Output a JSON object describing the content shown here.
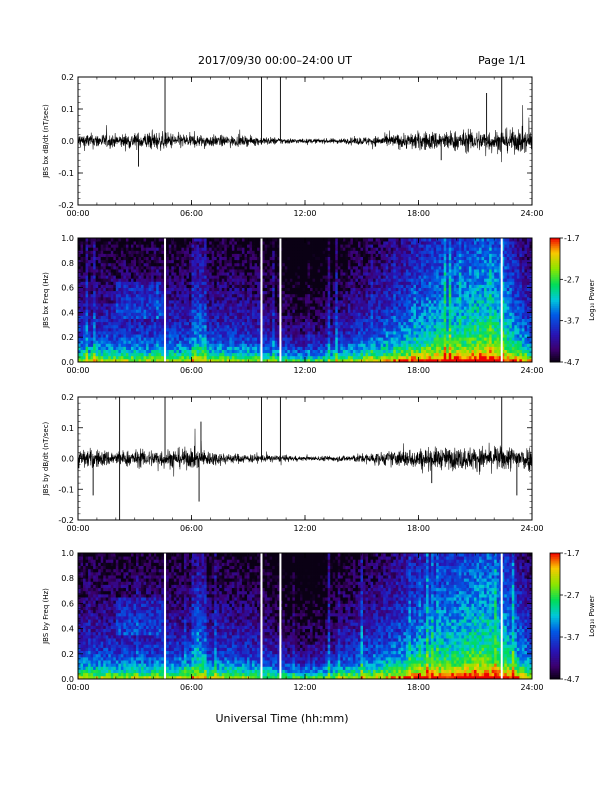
{
  "header": {
    "title": "2017/09/30  00:00–24:00 UT",
    "page": "Page 1/1"
  },
  "xaxis_title": "Universal Time (hh:mm)",
  "colorbar_label": "Log₁₀ Power",
  "chart_data": [
    {
      "type": "line",
      "ylabel": "JBS bx dB/dt (nT/sec)",
      "xlim": [
        0,
        24
      ],
      "ylim": [
        -0.2,
        0.2
      ],
      "x_ticks": [
        "00:00",
        "06:00",
        "12:00",
        "18:00",
        "24:00"
      ],
      "y_ticks": [
        "-0.2",
        "-0.1",
        "0.0",
        "0.1",
        "0.2"
      ],
      "amplitude_profile": [
        [
          0,
          0.03
        ],
        [
          2,
          0.025
        ],
        [
          4,
          0.035
        ],
        [
          6,
          0.025
        ],
        [
          8,
          0.02
        ],
        [
          10,
          0.015
        ],
        [
          12,
          0.008
        ],
        [
          14,
          0.01
        ],
        [
          16,
          0.02
        ],
        [
          18,
          0.035
        ],
        [
          21,
          0.04
        ],
        [
          24,
          0.045
        ]
      ],
      "spikes": [
        {
          "x": 4.6,
          "y": 0.2
        },
        {
          "x": 9.7,
          "y": 0.2
        },
        {
          "x": 10.7,
          "y": 0.2
        },
        {
          "x": 21.6,
          "y": 0.15
        },
        {
          "x": 22.4,
          "y": 0.2
        },
        {
          "x": 3.2,
          "y": -0.08
        },
        {
          "x": 19.2,
          "y": -0.06
        }
      ]
    },
    {
      "type": "heatmap",
      "ylabel": "JBS bx Freq (Hz)",
      "xlim": [
        0,
        24
      ],
      "ylim": [
        0,
        1.0
      ],
      "x_ticks": [
        "00:00",
        "06:00",
        "12:00",
        "18:00",
        "24:00"
      ],
      "y_ticks": [
        "0.0",
        "0.2",
        "0.4",
        "0.6",
        "0.8",
        "1.0"
      ],
      "colorbar_ticks": [
        "-1.7",
        "-2.7",
        "-3.7",
        "-4.7"
      ],
      "color_range": [
        -4.7,
        -1.7
      ],
      "data_gaps_hours": [
        4.6,
        9.7,
        10.7,
        22.4
      ]
    },
    {
      "type": "line",
      "ylabel": "JBS by dB/dt (nT/sec)",
      "xlim": [
        0,
        24
      ],
      "ylim": [
        -0.2,
        0.2
      ],
      "x_ticks": [
        "00:00",
        "06:00",
        "12:00",
        "18:00",
        "24:00"
      ],
      "y_ticks": [
        "-0.2",
        "-0.1",
        "0.0",
        "0.1",
        "0.2"
      ],
      "amplitude_profile": [
        [
          0,
          0.04
        ],
        [
          2,
          0.03
        ],
        [
          4,
          0.035
        ],
        [
          6,
          0.04
        ],
        [
          8,
          0.02
        ],
        [
          10,
          0.015
        ],
        [
          12,
          0.008
        ],
        [
          14,
          0.012
        ],
        [
          16,
          0.025
        ],
        [
          18,
          0.04
        ],
        [
          21,
          0.045
        ],
        [
          24,
          0.05
        ]
      ],
      "spikes": [
        {
          "x": 2.2,
          "y": 0.2
        },
        {
          "x": 4.6,
          "y": 0.2
        },
        {
          "x": 9.7,
          "y": 0.2
        },
        {
          "x": 10.7,
          "y": 0.2
        },
        {
          "x": 22.4,
          "y": 0.2
        },
        {
          "x": 2.2,
          "y": -0.2
        },
        {
          "x": 6.4,
          "y": -0.14
        },
        {
          "x": 6.5,
          "y": 0.12
        },
        {
          "x": 0.8,
          "y": -0.12
        },
        {
          "x": 18.7,
          "y": -0.08
        },
        {
          "x": 23.2,
          "y": -0.12
        }
      ]
    },
    {
      "type": "heatmap",
      "ylabel": "JBS by Freq (Hz)",
      "xlim": [
        0,
        24
      ],
      "ylim": [
        0,
        1.0
      ],
      "x_ticks": [
        "00:00",
        "06:00",
        "12:00",
        "18:00",
        "24:00"
      ],
      "y_ticks": [
        "0.0",
        "0.2",
        "0.4",
        "0.6",
        "0.8",
        "1.0"
      ],
      "colorbar_ticks": [
        "-1.7",
        "-2.7",
        "-3.7",
        "-4.7"
      ],
      "color_range": [
        -4.7,
        -1.7
      ],
      "data_gaps_hours": [
        4.6,
        9.7,
        10.7,
        22.4
      ]
    }
  ]
}
